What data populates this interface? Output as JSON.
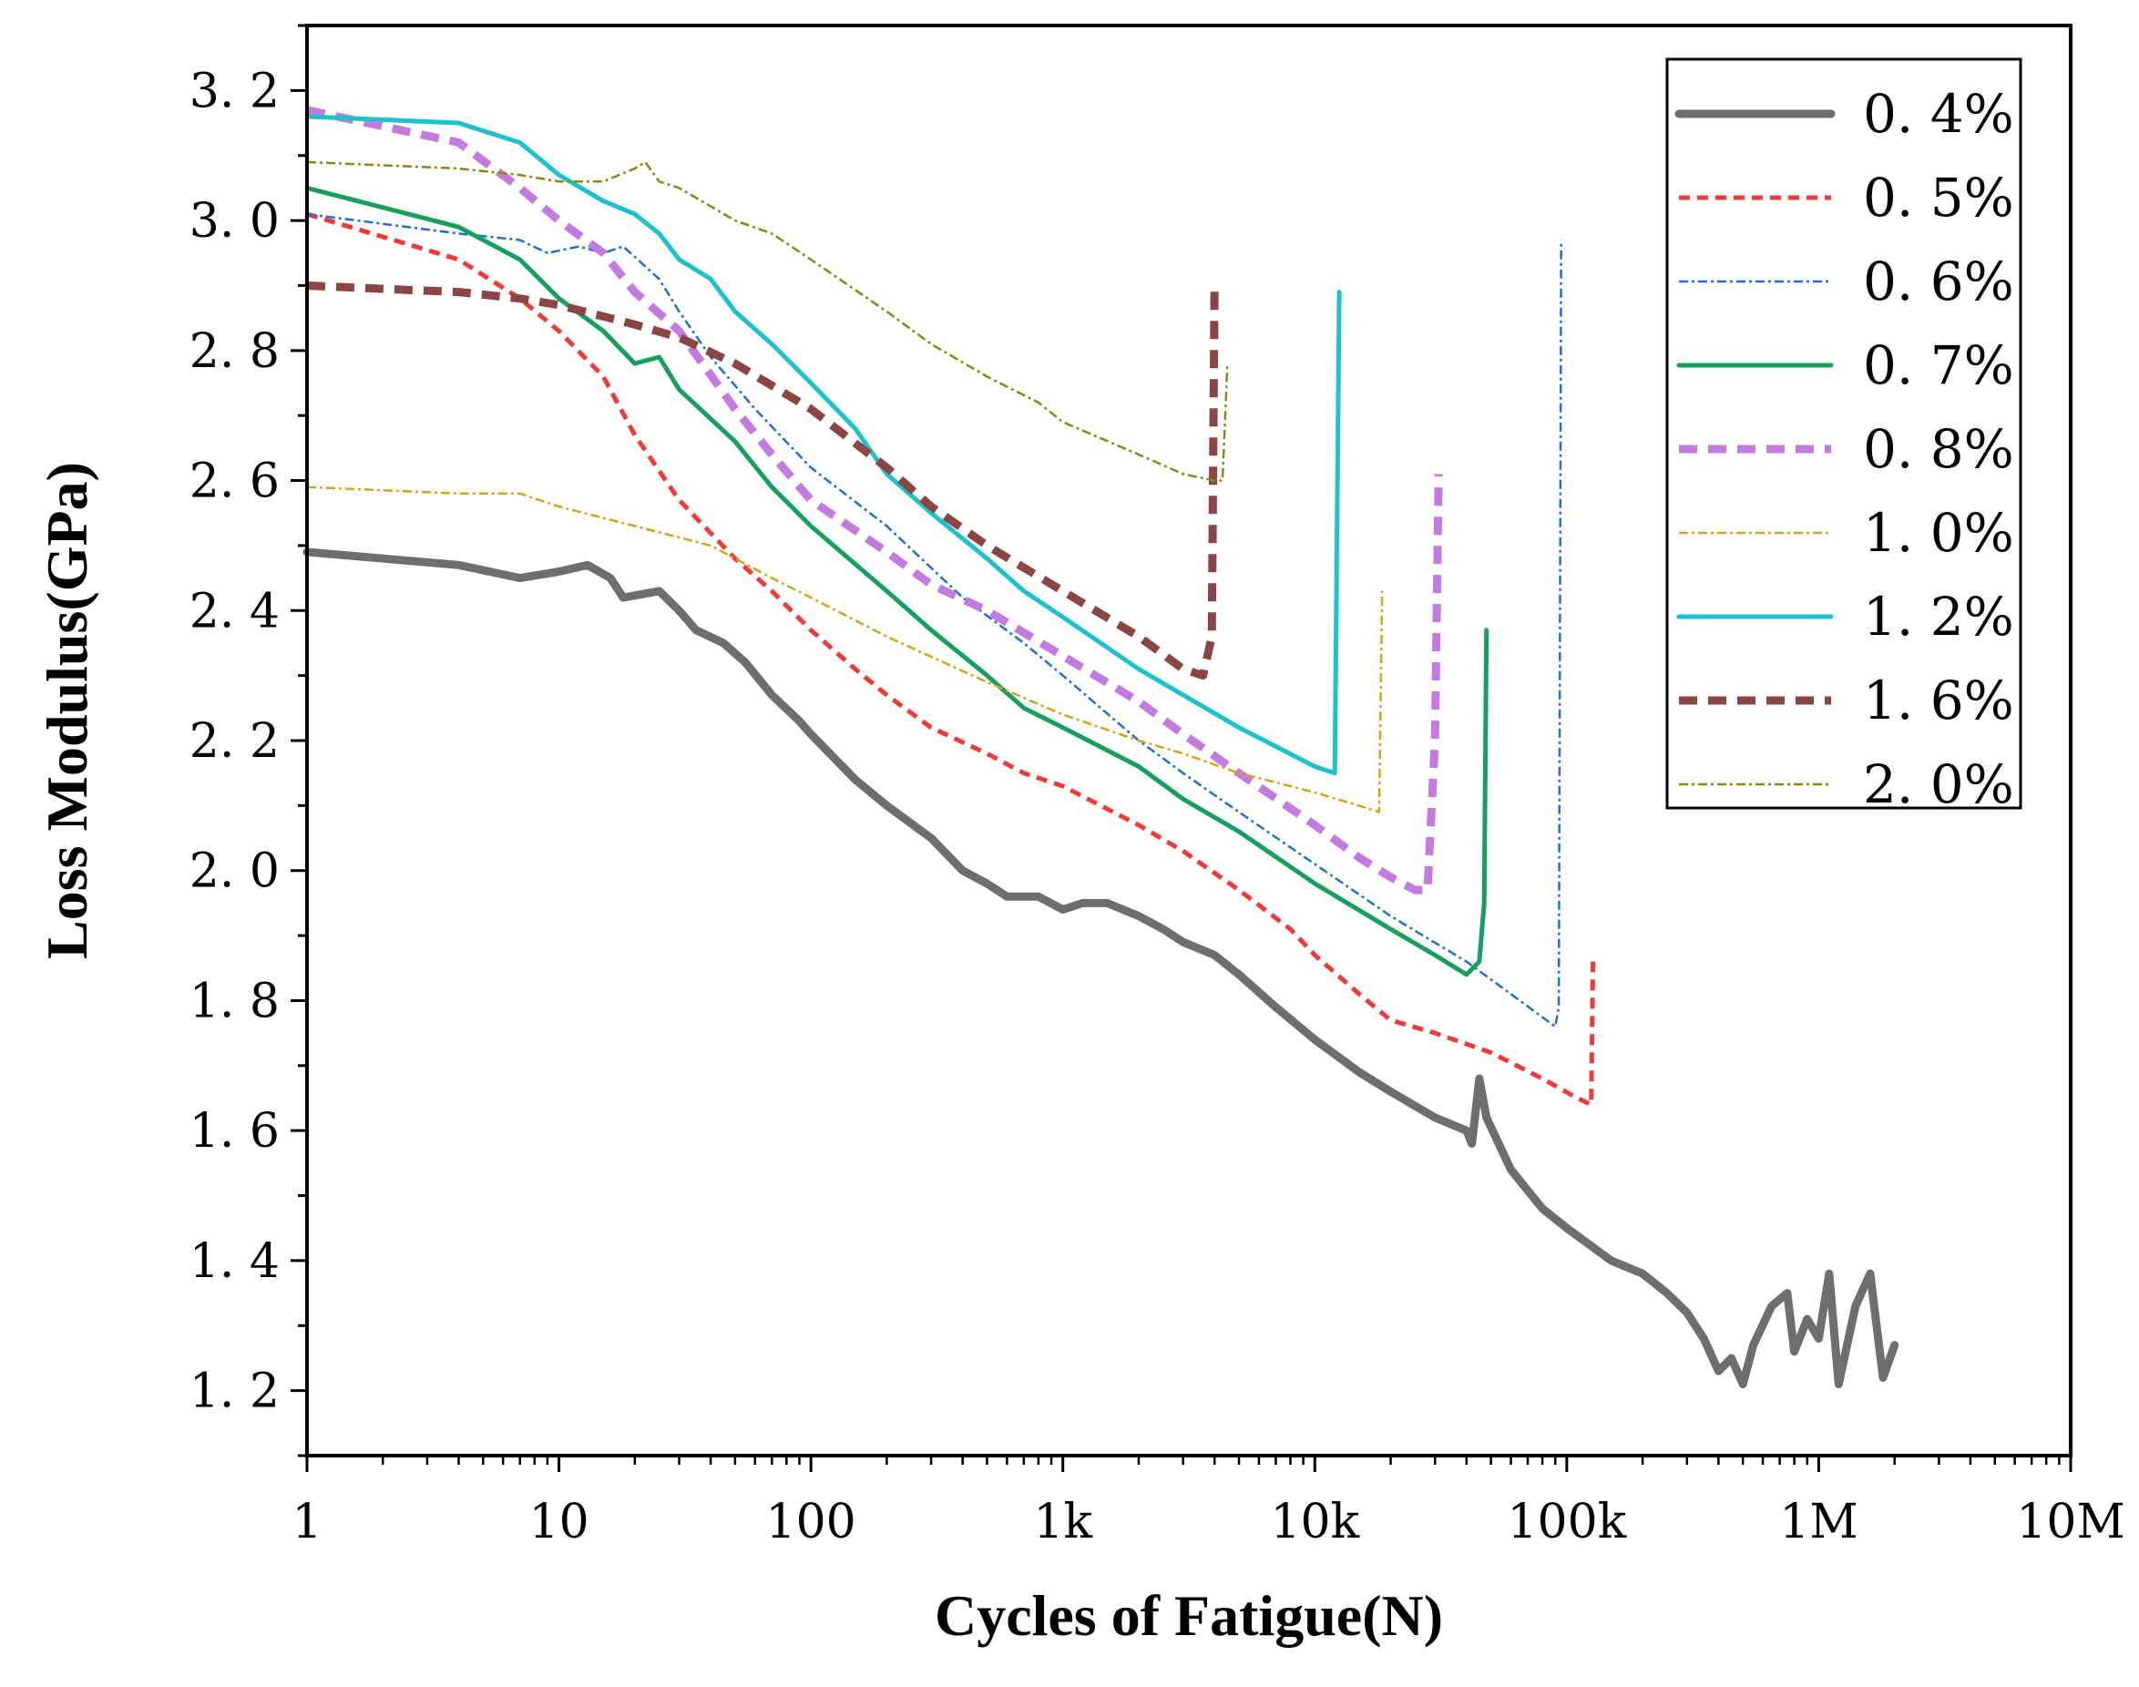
{
  "chart_data": {
    "type": "line",
    "xscale": "log",
    "xlabel": "Cycles of Fatigue(N)",
    "ylabel": "Loss Modulus(GPa)",
    "xlim": [
      1,
      10000000
    ],
    "ylim": [
      1.1,
      3.3
    ],
    "x_ticks": [
      {
        "value": 1,
        "label": "1"
      },
      {
        "value": 10,
        "label": "10"
      },
      {
        "value": 100,
        "label": "100"
      },
      {
        "value": 1000,
        "label": "1k"
      },
      {
        "value": 10000,
        "label": "10k"
      },
      {
        "value": 100000,
        "label": "100k"
      },
      {
        "value": 1000000,
        "label": "1M"
      },
      {
        "value": 10000000,
        "label": "10M"
      }
    ],
    "y_ticks": [
      {
        "value": 1.2,
        "label": "1. 2"
      },
      {
        "value": 1.4,
        "label": "1. 4"
      },
      {
        "value": 1.6,
        "label": "1. 6"
      },
      {
        "value": 1.8,
        "label": "1. 8"
      },
      {
        "value": 2.0,
        "label": "2. 0"
      },
      {
        "value": 2.2,
        "label": "2. 2"
      },
      {
        "value": 2.4,
        "label": "2. 4"
      },
      {
        "value": 2.6,
        "label": "2. 6"
      },
      {
        "value": 2.8,
        "label": "2. 8"
      },
      {
        "value": 3.0,
        "label": "3. 0"
      },
      {
        "value": 3.2,
        "label": "3. 2"
      }
    ],
    "legend_position": "top-right",
    "series": [
      {
        "name": "0. 4%",
        "color": "#6e6e6e",
        "style": "solid",
        "weight": "thick",
        "points": [
          [
            1,
            2.49
          ],
          [
            4,
            2.47
          ],
          [
            7,
            2.45
          ],
          [
            10,
            2.46
          ],
          [
            13,
            2.47
          ],
          [
            16,
            2.45
          ],
          [
            18,
            2.42
          ],
          [
            25,
            2.43
          ],
          [
            30,
            2.4
          ],
          [
            35,
            2.37
          ],
          [
            45,
            2.35
          ],
          [
            55,
            2.32
          ],
          [
            70,
            2.27
          ],
          [
            90,
            2.23
          ],
          [
            100,
            2.21
          ],
          [
            150,
            2.14
          ],
          [
            200,
            2.1
          ],
          [
            300,
            2.05
          ],
          [
            400,
            2.0
          ],
          [
            500,
            1.98
          ],
          [
            600,
            1.96
          ],
          [
            800,
            1.96
          ],
          [
            1000,
            1.94
          ],
          [
            1200,
            1.95
          ],
          [
            1500,
            1.95
          ],
          [
            2000,
            1.93
          ],
          [
            2500,
            1.91
          ],
          [
            3000,
            1.89
          ],
          [
            4000,
            1.87
          ],
          [
            5000,
            1.84
          ],
          [
            7000,
            1.79
          ],
          [
            10000,
            1.74
          ],
          [
            15000,
            1.69
          ],
          [
            20000,
            1.66
          ],
          [
            30000,
            1.62
          ],
          [
            40000,
            1.6
          ],
          [
            42000,
            1.58
          ],
          [
            45000,
            1.68
          ],
          [
            48000,
            1.62
          ],
          [
            60000,
            1.54
          ],
          [
            80000,
            1.48
          ],
          [
            100000,
            1.45
          ],
          [
            150000,
            1.4
          ],
          [
            200000,
            1.38
          ],
          [
            250000,
            1.35
          ],
          [
            300000,
            1.32
          ],
          [
            350000,
            1.28
          ],
          [
            400000,
            1.23
          ],
          [
            450000,
            1.25
          ],
          [
            500000,
            1.21
          ],
          [
            550000,
            1.27
          ],
          [
            650000,
            1.33
          ],
          [
            750000,
            1.35
          ],
          [
            800000,
            1.26
          ],
          [
            900000,
            1.31
          ],
          [
            1000000,
            1.28
          ],
          [
            1100000,
            1.38
          ],
          [
            1200000,
            1.21
          ],
          [
            1400000,
            1.33
          ],
          [
            1600000,
            1.38
          ],
          [
            1800000,
            1.22
          ],
          [
            2000000,
            1.27
          ]
        ]
      },
      {
        "name": "0. 5%",
        "color": "#f03a3a",
        "style": "short-dash",
        "weight": "medium",
        "points": [
          [
            1,
            3.01
          ],
          [
            4,
            2.94
          ],
          [
            7,
            2.88
          ],
          [
            10,
            2.83
          ],
          [
            15,
            2.76
          ],
          [
            20,
            2.67
          ],
          [
            30,
            2.57
          ],
          [
            50,
            2.48
          ],
          [
            70,
            2.43
          ],
          [
            100,
            2.37
          ],
          [
            150,
            2.31
          ],
          [
            200,
            2.27
          ],
          [
            300,
            2.22
          ],
          [
            500,
            2.18
          ],
          [
            700,
            2.15
          ],
          [
            1000,
            2.13
          ],
          [
            2000,
            2.07
          ],
          [
            3000,
            2.03
          ],
          [
            5000,
            1.97
          ],
          [
            8000,
            1.91
          ],
          [
            10000,
            1.87
          ],
          [
            15000,
            1.81
          ],
          [
            20000,
            1.77
          ],
          [
            30000,
            1.75
          ],
          [
            50000,
            1.72
          ],
          [
            80000,
            1.68
          ],
          [
            110000,
            1.65
          ],
          [
            125000,
            1.64
          ],
          [
            127000,
            1.86
          ]
        ]
      },
      {
        "name": "0. 6%",
        "color": "#1f6fd6",
        "style": "dash-dot",
        "weight": "thin",
        "points": [
          [
            1,
            3.01
          ],
          [
            4,
            2.98
          ],
          [
            7,
            2.97
          ],
          [
            9,
            2.95
          ],
          [
            12,
            2.96
          ],
          [
            15,
            2.95
          ],
          [
            18,
            2.96
          ],
          [
            25,
            2.91
          ],
          [
            30,
            2.86
          ],
          [
            40,
            2.79
          ],
          [
            60,
            2.71
          ],
          [
            100,
            2.62
          ],
          [
            200,
            2.53
          ],
          [
            400,
            2.42
          ],
          [
            700,
            2.35
          ],
          [
            1000,
            2.3
          ],
          [
            2000,
            2.2
          ],
          [
            3000,
            2.15
          ],
          [
            5000,
            2.09
          ],
          [
            10000,
            2.01
          ],
          [
            20000,
            1.93
          ],
          [
            40000,
            1.86
          ],
          [
            60000,
            1.81
          ],
          [
            90000,
            1.76
          ],
          [
            93000,
            1.79
          ],
          [
            95000,
            2.97
          ]
        ]
      },
      {
        "name": "0. 7%",
        "color": "#15a05e",
        "style": "solid",
        "weight": "medium",
        "points": [
          [
            1,
            3.05
          ],
          [
            4,
            2.99
          ],
          [
            7,
            2.94
          ],
          [
            10,
            2.88
          ],
          [
            15,
            2.83
          ],
          [
            20,
            2.78
          ],
          [
            25,
            2.79
          ],
          [
            30,
            2.74
          ],
          [
            50,
            2.66
          ],
          [
            70,
            2.59
          ],
          [
            100,
            2.53
          ],
          [
            200,
            2.43
          ],
          [
            300,
            2.37
          ],
          [
            500,
            2.3
          ],
          [
            700,
            2.25
          ],
          [
            1000,
            2.22
          ],
          [
            2000,
            2.16
          ],
          [
            3000,
            2.11
          ],
          [
            5000,
            2.06
          ],
          [
            10000,
            1.98
          ],
          [
            20000,
            1.91
          ],
          [
            30000,
            1.87
          ],
          [
            40000,
            1.84
          ],
          [
            45000,
            1.86
          ],
          [
            47000,
            1.95
          ],
          [
            48000,
            2.37
          ]
        ]
      },
      {
        "name": "0. 8%",
        "color": "#c37be0",
        "style": "dash",
        "weight": "thick",
        "points": [
          [
            1,
            3.17
          ],
          [
            4,
            3.12
          ],
          [
            7,
            3.05
          ],
          [
            10,
            3.0
          ],
          [
            15,
            2.95
          ],
          [
            20,
            2.89
          ],
          [
            30,
            2.83
          ],
          [
            50,
            2.71
          ],
          [
            70,
            2.64
          ],
          [
            100,
            2.57
          ],
          [
            200,
            2.49
          ],
          [
            300,
            2.44
          ],
          [
            500,
            2.4
          ],
          [
            1000,
            2.33
          ],
          [
            2000,
            2.26
          ],
          [
            3000,
            2.21
          ],
          [
            5000,
            2.15
          ],
          [
            10000,
            2.07
          ],
          [
            15000,
            2.02
          ],
          [
            20000,
            1.99
          ],
          [
            25000,
            1.97
          ],
          [
            28000,
            1.97
          ],
          [
            30000,
            2.2
          ],
          [
            31000,
            2.61
          ]
        ]
      },
      {
        "name": "1. 0%",
        "color": "#d9a21a",
        "style": "dash-dot",
        "weight": "thin",
        "points": [
          [
            1,
            2.59
          ],
          [
            4,
            2.58
          ],
          [
            7,
            2.58
          ],
          [
            10,
            2.56
          ],
          [
            20,
            2.53
          ],
          [
            40,
            2.5
          ],
          [
            70,
            2.45
          ],
          [
            100,
            2.42
          ],
          [
            200,
            2.36
          ],
          [
            500,
            2.29
          ],
          [
            1000,
            2.24
          ],
          [
            2000,
            2.2
          ],
          [
            3000,
            2.18
          ],
          [
            5000,
            2.15
          ],
          [
            8000,
            2.13
          ],
          [
            10000,
            2.12
          ],
          [
            15000,
            2.1
          ],
          [
            18000,
            2.09
          ],
          [
            18500,
            2.43
          ]
        ]
      },
      {
        "name": "1. 2%",
        "color": "#1cc3cc",
        "style": "solid",
        "weight": "medium",
        "points": [
          [
            1,
            3.16
          ],
          [
            4,
            3.15
          ],
          [
            7,
            3.12
          ],
          [
            10,
            3.07
          ],
          [
            15,
            3.03
          ],
          [
            20,
            3.01
          ],
          [
            25,
            2.98
          ],
          [
            30,
            2.94
          ],
          [
            40,
            2.91
          ],
          [
            50,
            2.86
          ],
          [
            70,
            2.81
          ],
          [
            100,
            2.75
          ],
          [
            150,
            2.68
          ],
          [
            200,
            2.61
          ],
          [
            300,
            2.55
          ],
          [
            500,
            2.48
          ],
          [
            700,
            2.43
          ],
          [
            1000,
            2.39
          ],
          [
            2000,
            2.31
          ],
          [
            3000,
            2.27
          ],
          [
            5000,
            2.22
          ],
          [
            10000,
            2.16
          ],
          [
            12000,
            2.15
          ],
          [
            12500,
            2.89
          ]
        ]
      },
      {
        "name": "1. 6%",
        "color": "#8c4545",
        "style": "dash",
        "weight": "thick",
        "points": [
          [
            1,
            2.9
          ],
          [
            4,
            2.89
          ],
          [
            7,
            2.88
          ],
          [
            10,
            2.87
          ],
          [
            20,
            2.84
          ],
          [
            30,
            2.82
          ],
          [
            50,
            2.78
          ],
          [
            100,
            2.71
          ],
          [
            200,
            2.62
          ],
          [
            300,
            2.56
          ],
          [
            500,
            2.5
          ],
          [
            1000,
            2.43
          ],
          [
            2000,
            2.36
          ],
          [
            3000,
            2.31
          ],
          [
            3600,
            2.3
          ],
          [
            3900,
            2.36
          ],
          [
            4000,
            2.9
          ]
        ]
      },
      {
        "name": "2. 0%",
        "color": "#8a8a10",
        "style": "dash-dot",
        "weight": "thin",
        "points": [
          [
            1,
            3.09
          ],
          [
            4,
            3.08
          ],
          [
            7,
            3.07
          ],
          [
            10,
            3.06
          ],
          [
            15,
            3.06
          ],
          [
            20,
            3.08
          ],
          [
            22,
            3.09
          ],
          [
            25,
            3.06
          ],
          [
            30,
            3.05
          ],
          [
            50,
            3.0
          ],
          [
            70,
            2.98
          ],
          [
            100,
            2.94
          ],
          [
            200,
            2.86
          ],
          [
            300,
            2.81
          ],
          [
            500,
            2.76
          ],
          [
            800,
            2.72
          ],
          [
            1000,
            2.69
          ],
          [
            2000,
            2.64
          ],
          [
            3000,
            2.61
          ],
          [
            4000,
            2.6
          ],
          [
            4300,
            2.6
          ],
          [
            4500,
            2.78
          ]
        ]
      }
    ]
  }
}
